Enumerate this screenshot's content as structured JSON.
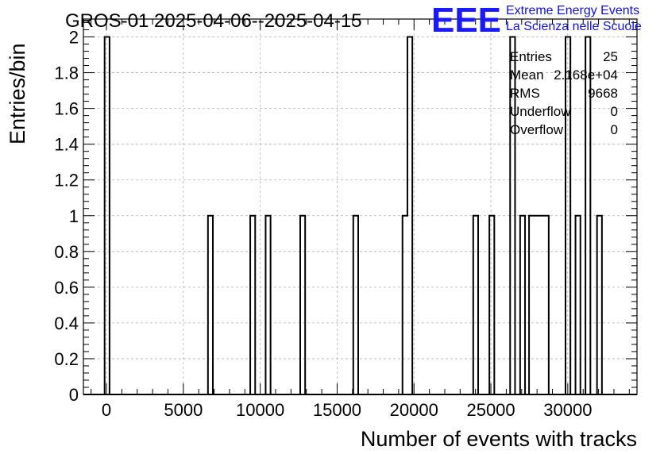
{
  "chart_data": {
    "type": "bar",
    "title": "GROS-01 2025-04-06--2025-04-15",
    "xlabel": "Number of events with tracks",
    "ylabel": "Entries/bin",
    "xlim": [
      -1500,
      34500
    ],
    "ylim": [
      0,
      2.1
    ],
    "bin_width": 320,
    "x_ticks": [
      0,
      5000,
      10000,
      15000,
      20000,
      25000,
      30000
    ],
    "y_ticks": [
      0,
      0.2,
      0.4,
      0.6,
      0.8,
      1,
      1.2,
      1.4,
      1.6,
      1.8,
      2
    ],
    "grid": true,
    "bins": [
      {
        "x0": -120,
        "x1": 200,
        "count": 2
      },
      {
        "x0": 6600,
        "x1": 6920,
        "count": 1
      },
      {
        "x0": 9350,
        "x1": 9670,
        "count": 1
      },
      {
        "x0": 10350,
        "x1": 10670,
        "count": 1
      },
      {
        "x0": 12600,
        "x1": 12920,
        "count": 1
      },
      {
        "x0": 16050,
        "x1": 16370,
        "count": 1
      },
      {
        "x0": 19250,
        "x1": 19570,
        "count": 1
      },
      {
        "x0": 19570,
        "x1": 19890,
        "count": 2
      },
      {
        "x0": 23850,
        "x1": 24170,
        "count": 1
      },
      {
        "x0": 24900,
        "x1": 25220,
        "count": 1
      },
      {
        "x0": 26250,
        "x1": 26570,
        "count": 2
      },
      {
        "x0": 26900,
        "x1": 27220,
        "count": 1
      },
      {
        "x0": 27480,
        "x1": 27800,
        "count": 1
      },
      {
        "x0": 27800,
        "x1": 28120,
        "count": 1
      },
      {
        "x0": 28120,
        "x1": 28440,
        "count": 1
      },
      {
        "x0": 28440,
        "x1": 28760,
        "count": 1
      },
      {
        "x0": 29850,
        "x1": 30170,
        "count": 2
      },
      {
        "x0": 30500,
        "x1": 30820,
        "count": 1
      },
      {
        "x0": 31150,
        "x1": 31470,
        "count": 2
      },
      {
        "x0": 31900,
        "x1": 32220,
        "count": 1
      }
    ],
    "stats": [
      {
        "label": "Entries",
        "value": "25"
      },
      {
        "label": "Mean",
        "value": "2.168e+04"
      },
      {
        "label": "RMS",
        "value": "9668"
      },
      {
        "label": "Underflow",
        "value": "0"
      },
      {
        "label": "Overflow",
        "value": "0"
      }
    ]
  },
  "logo": {
    "mark": "EEE",
    "line1": "Extreme Energy Events",
    "line2": "La Scienza nelle Scuole",
    "color": "#1a1aff"
  }
}
